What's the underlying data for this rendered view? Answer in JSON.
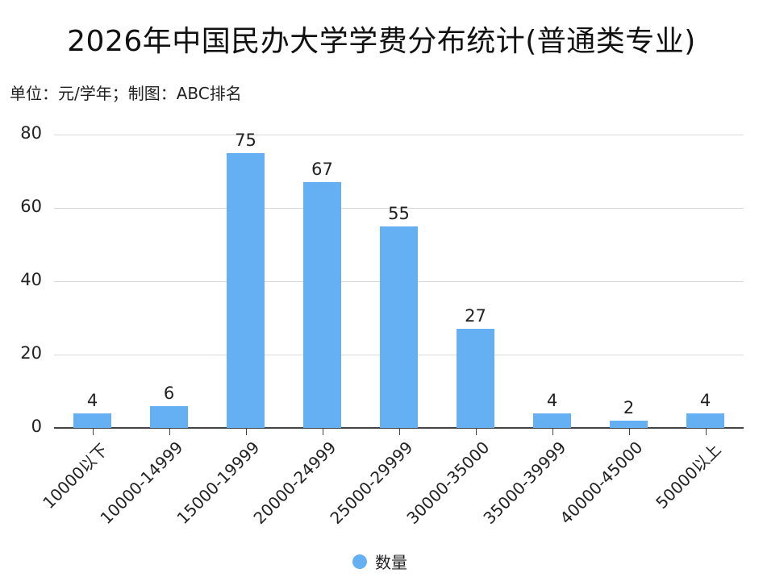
{
  "header": {
    "title": "2026年中国民办大学学费分布统计(普通类专业)",
    "subtitle": "单位：元/学年；制图：ABC排名"
  },
  "legend": {
    "label": "数量",
    "color": "#64b0f2"
  },
  "colors": {
    "bar": "#64b0f2",
    "grid": "#d9d9d9",
    "axis": "#444444"
  },
  "chart_data": {
    "type": "bar",
    "title": "2026年中国民办大学学费分布统计(普通类专业)",
    "subtitle": "单位：元/学年；制图：ABC排名",
    "xlabel": "",
    "ylabel": "",
    "categories": [
      "10000以下",
      "10000-14999",
      "15000-19999",
      "20000-24999",
      "25000-29999",
      "30000-35000",
      "35000-39999",
      "40000-45000",
      "50000以上"
    ],
    "series": [
      {
        "name": "数量",
        "values": [
          4,
          6,
          75,
          67,
          55,
          27,
          4,
          2,
          4
        ]
      }
    ],
    "ylim": [
      0,
      80
    ],
    "yticks": [
      0,
      20,
      40,
      60,
      80
    ],
    "grid": true,
    "data_labels": true,
    "legend_position": "bottom"
  }
}
